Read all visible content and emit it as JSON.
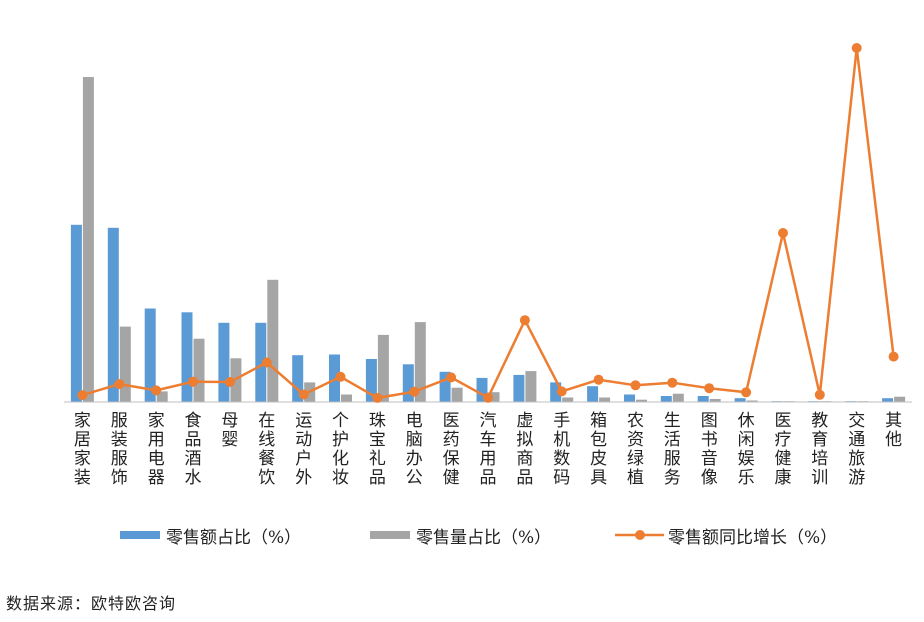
{
  "chart_data": {
    "type": "bar",
    "categories": [
      "家居家装",
      "服装服饰",
      "家用电器",
      "食品酒水",
      "母婴",
      "在线餐饮",
      "运动户外",
      "个护化妆",
      "珠宝礼品",
      "电脑办公",
      "医药保健",
      "汽车用品",
      "虚拟商品",
      "手机数码",
      "箱包皮具",
      "农资绿植",
      "生活服务",
      "图书音像",
      "休闲娱乐",
      "医疗健康",
      "教育培训",
      "交通旅游",
      "其他"
    ],
    "series": [
      {
        "name": "零售额占比（%）",
        "type": "bar",
        "color": "#5b9bd5",
        "values": [
          23.5,
          23.1,
          12.4,
          11.9,
          10.5,
          10.5,
          6.2,
          6.3,
          5.7,
          5.0,
          4.0,
          3.2,
          3.6,
          2.6,
          2.1,
          1.0,
          0.8,
          0.8,
          0.5,
          0.1,
          0.1,
          0.1,
          0.5
        ]
      },
      {
        "name": "零售量占比（%）",
        "type": "bar",
        "color": "#a5a5a5",
        "values": [
          43.1,
          10.0,
          1.4,
          8.4,
          5.8,
          16.2,
          2.6,
          1.0,
          8.9,
          10.6,
          1.9,
          1.3,
          4.1,
          0.6,
          0.6,
          0.3,
          1.1,
          0.4,
          0.2,
          0.1,
          0.1,
          0.1,
          0.7
        ]
      },
      {
        "name": "零售额同比增长（%）",
        "type": "line",
        "color": "#ed7d31",
        "values": [
          5.7,
          14.8,
          9.6,
          16.8,
          16.6,
          32.7,
          6.2,
          20.9,
          3.4,
          8.5,
          20.4,
          3.6,
          67.8,
          8.8,
          18.5,
          13.8,
          16.0,
          11.4,
          8.0,
          140.0,
          6.0,
          293.3,
          37.6
        ]
      }
    ],
    "legend_position": "bottom",
    "grid": false
  },
  "source_text": "数据来源：欧特欧咨询"
}
